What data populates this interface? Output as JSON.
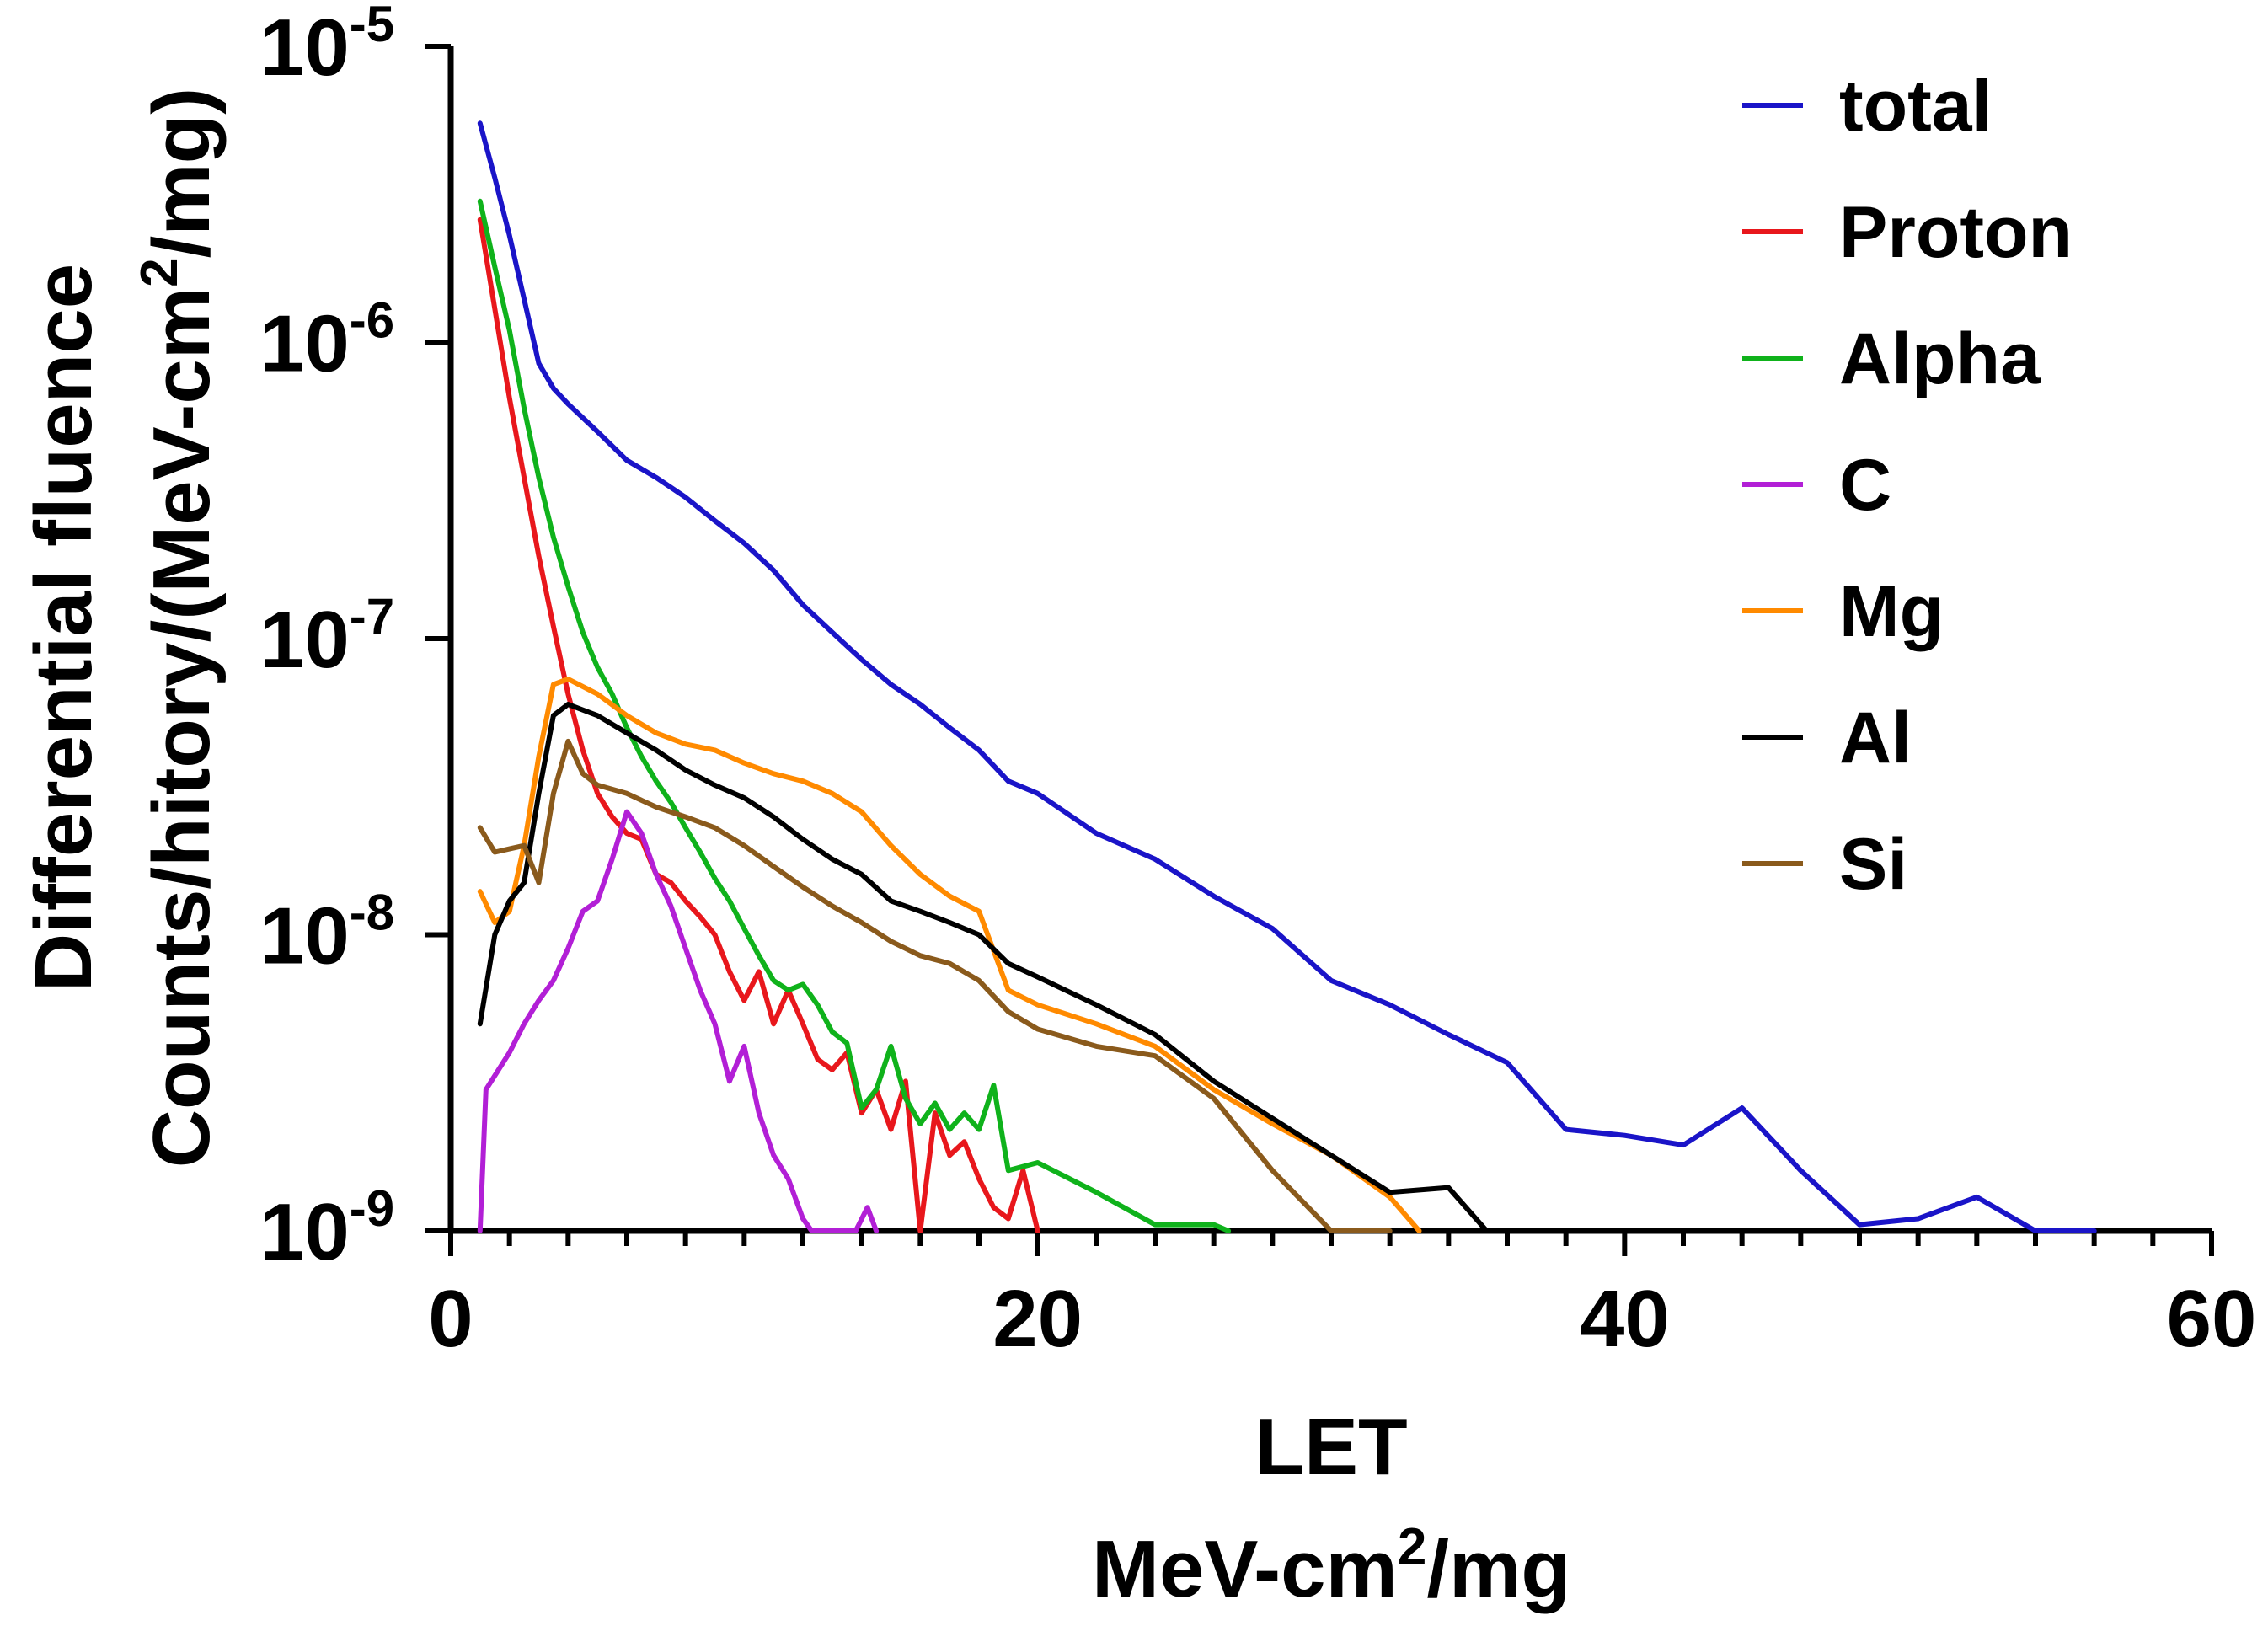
{
  "chart_data": {
    "type": "line",
    "title": "",
    "xlabel": "LET",
    "xlabel_unit": {
      "base": "MeV-cm",
      "sup": "2",
      "tail": "/mg"
    },
    "ylabel_line1": "Differential fluence",
    "ylabel_line2": {
      "base": "Counts/hitory/(MeV-cm",
      "sup": "2",
      "tail": "/mg)"
    },
    "xlim": [
      0,
      60
    ],
    "ylim": [
      1e-09,
      1e-05
    ],
    "yscale": "log",
    "x_ticks": [
      {
        "value": 0,
        "label": "0"
      },
      {
        "value": 20,
        "label": "20"
      },
      {
        "value": 40,
        "label": "40"
      },
      {
        "value": 60,
        "label": "60"
      }
    ],
    "y_ticks": [
      {
        "value": -5,
        "base": "10",
        "exp": "-5"
      },
      {
        "value": -6,
        "base": "10",
        "exp": "-6"
      },
      {
        "value": -7,
        "base": "10",
        "exp": "-7"
      },
      {
        "value": -8,
        "base": "10",
        "exp": "-8"
      },
      {
        "value": -9,
        "base": "10",
        "exp": "-9"
      }
    ],
    "legend_position": "top-right",
    "series": [
      {
        "name": "total",
        "color": "#1a14c8",
        "points": [
          [
            1,
            5.5e-06
          ],
          [
            1.5,
            3.6e-06
          ],
          [
            2,
            2.3e-06
          ],
          [
            2.5,
            1.4e-06
          ],
          [
            3,
            8.5e-07
          ],
          [
            3.5,
            7e-07
          ],
          [
            4,
            6.2e-07
          ],
          [
            5,
            5e-07
          ],
          [
            6,
            4e-07
          ],
          [
            7,
            3.5e-07
          ],
          [
            8,
            3e-07
          ],
          [
            9,
            2.5e-07
          ],
          [
            10,
            2.1e-07
          ],
          [
            11,
            1.7e-07
          ],
          [
            12,
            1.3e-07
          ],
          [
            13,
            1.05e-07
          ],
          [
            14,
            8.5e-08
          ],
          [
            15,
            7e-08
          ],
          [
            16,
            6e-08
          ],
          [
            17,
            5e-08
          ],
          [
            18,
            4.2e-08
          ],
          [
            19,
            3.3e-08
          ],
          [
            20,
            3e-08
          ],
          [
            22,
            2.2e-08
          ],
          [
            24,
            1.8e-08
          ],
          [
            26,
            1.35e-08
          ],
          [
            28,
            1.05e-08
          ],
          [
            30,
            7e-09
          ],
          [
            32,
            5.8e-09
          ],
          [
            34,
            4.6e-09
          ],
          [
            36,
            3.7e-09
          ],
          [
            38,
            2.2e-09
          ],
          [
            40,
            2.1e-09
          ],
          [
            42,
            1.95e-09
          ],
          [
            44,
            2.6e-09
          ],
          [
            46,
            1.6e-09
          ],
          [
            48,
            1.05e-09
          ],
          [
            50,
            1.1e-09
          ],
          [
            52,
            1.3e-09
          ],
          [
            54,
            1e-09
          ],
          [
            56,
            1e-09
          ]
        ]
      },
      {
        "name": "Proton",
        "color": "#e8171c",
        "points": [
          [
            1,
            2.6e-06
          ],
          [
            1.5,
            1.3e-06
          ],
          [
            2,
            6.5e-07
          ],
          [
            2.5,
            3.5e-07
          ],
          [
            3,
            1.9e-07
          ],
          [
            3.5,
            1.1e-07
          ],
          [
            4,
            6.5e-08
          ],
          [
            4.5,
            4.2e-08
          ],
          [
            5,
            3e-08
          ],
          [
            5.5,
            2.5e-08
          ],
          [
            6,
            2.2e-08
          ],
          [
            6.5,
            2.1e-08
          ],
          [
            7,
            1.6e-08
          ],
          [
            7.5,
            1.5e-08
          ],
          [
            8,
            1.3e-08
          ],
          [
            8.5,
            1.15e-08
          ],
          [
            9,
            1e-08
          ],
          [
            9.5,
            7.5e-09
          ],
          [
            10,
            6e-09
          ],
          [
            10.5,
            7.5e-09
          ],
          [
            11,
            5e-09
          ],
          [
            11.5,
            6.5e-09
          ],
          [
            12,
            5e-09
          ],
          [
            12.5,
            3.8e-09
          ],
          [
            13,
            3.5e-09
          ],
          [
            13.5,
            4e-09
          ],
          [
            14,
            2.5e-09
          ],
          [
            14.5,
            3e-09
          ],
          [
            15,
            2.2e-09
          ],
          [
            15.5,
            3.2e-09
          ],
          [
            16,
            1e-09
          ],
          [
            16.5,
            2.5e-09
          ],
          [
            17,
            1.8e-09
          ],
          [
            17.5,
            2e-09
          ],
          [
            18,
            1.5e-09
          ],
          [
            18.5,
            1.2e-09
          ],
          [
            19,
            1.1e-09
          ],
          [
            19.5,
            1.6e-09
          ],
          [
            20,
            1e-09
          ]
        ]
      },
      {
        "name": "Alpha",
        "color": "#0fb21b",
        "points": [
          [
            1,
            3e-06
          ],
          [
            1.5,
            1.8e-06
          ],
          [
            2,
            1.1e-06
          ],
          [
            2.5,
            6e-07
          ],
          [
            3,
            3.5e-07
          ],
          [
            3.5,
            2.2e-07
          ],
          [
            4,
            1.5e-07
          ],
          [
            4.5,
            1.05e-07
          ],
          [
            5,
            8e-08
          ],
          [
            5.5,
            6.5e-08
          ],
          [
            6,
            5e-08
          ],
          [
            6.5,
            4e-08
          ],
          [
            7,
            3.3e-08
          ],
          [
            7.5,
            2.8e-08
          ],
          [
            8,
            2.3e-08
          ],
          [
            8.5,
            1.9e-08
          ],
          [
            9,
            1.55e-08
          ],
          [
            9.5,
            1.3e-08
          ],
          [
            10,
            1.05e-08
          ],
          [
            10.5,
            8.5e-09
          ],
          [
            11,
            7e-09
          ],
          [
            11.5,
            6.5e-09
          ],
          [
            12,
            6.8e-09
          ],
          [
            12.5,
            5.8e-09
          ],
          [
            13,
            4.7e-09
          ],
          [
            13.5,
            4.3e-09
          ],
          [
            14,
            2.6e-09
          ],
          [
            14.5,
            3e-09
          ],
          [
            15,
            4.2e-09
          ],
          [
            15.5,
            2.8e-09
          ],
          [
            16,
            2.3e-09
          ],
          [
            16.5,
            2.7e-09
          ],
          [
            17,
            2.2e-09
          ],
          [
            17.5,
            2.5e-09
          ],
          [
            18,
            2.2e-09
          ],
          [
            18.5,
            3.1e-09
          ],
          [
            19,
            1.6e-09
          ],
          [
            20,
            1.7e-09
          ],
          [
            22,
            1.35e-09
          ],
          [
            24,
            1.05e-09
          ],
          [
            26,
            1.05e-09
          ],
          [
            26.5,
            1e-09
          ]
        ]
      },
      {
        "name": "C",
        "color": "#b21fd6",
        "points": [
          [
            1,
            1e-09
          ],
          [
            1.2,
            3e-09
          ],
          [
            2,
            4e-09
          ],
          [
            2.5,
            5e-09
          ],
          [
            3,
            6e-09
          ],
          [
            3.5,
            7e-09
          ],
          [
            4,
            9e-09
          ],
          [
            4.5,
            1.2e-08
          ],
          [
            5,
            1.3e-08
          ],
          [
            5.5,
            1.8e-08
          ],
          [
            6,
            2.6e-08
          ],
          [
            6.5,
            2.2e-08
          ],
          [
            7,
            1.6e-08
          ],
          [
            7.5,
            1.25e-08
          ],
          [
            8,
            9e-09
          ],
          [
            8.5,
            6.5e-09
          ],
          [
            9,
            5e-09
          ],
          [
            9.5,
            3.2e-09
          ],
          [
            10,
            4.2e-09
          ],
          [
            10.5,
            2.5e-09
          ],
          [
            11,
            1.8e-09
          ],
          [
            11.5,
            1.5e-09
          ],
          [
            12,
            1.1e-09
          ],
          [
            12.3,
            1e-09
          ],
          [
            13.8,
            1e-09
          ],
          [
            14.2,
            1.2e-09
          ],
          [
            14.5,
            1e-09
          ]
        ]
      },
      {
        "name": "Mg",
        "color": "#ff8a00",
        "points": [
          [
            1,
            1.4e-08
          ],
          [
            1.5,
            1.1e-08
          ],
          [
            2,
            1.2e-08
          ],
          [
            2.5,
            2e-08
          ],
          [
            3,
            4e-08
          ],
          [
            3.5,
            7e-08
          ],
          [
            4,
            7.3e-08
          ],
          [
            5,
            6.5e-08
          ],
          [
            6,
            5.5e-08
          ],
          [
            7,
            4.8e-08
          ],
          [
            8,
            4.4e-08
          ],
          [
            9,
            4.2e-08
          ],
          [
            10,
            3.8e-08
          ],
          [
            11,
            3.5e-08
          ],
          [
            12,
            3.3e-08
          ],
          [
            13,
            3e-08
          ],
          [
            14,
            2.6e-08
          ],
          [
            15,
            2e-08
          ],
          [
            16,
            1.6e-08
          ],
          [
            17,
            1.35e-08
          ],
          [
            18,
            1.2e-08
          ],
          [
            19,
            6.5e-09
          ],
          [
            20,
            5.8e-09
          ],
          [
            22,
            5e-09
          ],
          [
            24,
            4.2e-09
          ],
          [
            26,
            3e-09
          ],
          [
            28,
            2.3e-09
          ],
          [
            30,
            1.8e-09
          ],
          [
            32,
            1.3e-09
          ],
          [
            33,
            1e-09
          ]
        ]
      },
      {
        "name": "Al",
        "color": "#000000",
        "points": [
          [
            1,
            5e-09
          ],
          [
            1.5,
            1e-08
          ],
          [
            2,
            1.3e-08
          ],
          [
            2.5,
            1.5e-08
          ],
          [
            3,
            3e-08
          ],
          [
            3.5,
            5.5e-08
          ],
          [
            4,
            6e-08
          ],
          [
            5,
            5.5e-08
          ],
          [
            6,
            4.8e-08
          ],
          [
            7,
            4.2e-08
          ],
          [
            8,
            3.6e-08
          ],
          [
            9,
            3.2e-08
          ],
          [
            10,
            2.9e-08
          ],
          [
            11,
            2.5e-08
          ],
          [
            12,
            2.1e-08
          ],
          [
            13,
            1.8e-08
          ],
          [
            14,
            1.6e-08
          ],
          [
            15,
            1.3e-08
          ],
          [
            16,
            1.2e-08
          ],
          [
            17,
            1.1e-08
          ],
          [
            18,
            1e-08
          ],
          [
            19,
            8e-09
          ],
          [
            20,
            7.2e-09
          ],
          [
            22,
            5.8e-09
          ],
          [
            24,
            4.6e-09
          ],
          [
            26,
            3.2e-09
          ],
          [
            28,
            2.4e-09
          ],
          [
            30,
            1.8e-09
          ],
          [
            32,
            1.35e-09
          ],
          [
            34,
            1.4e-09
          ],
          [
            35.3,
            1e-09
          ]
        ]
      },
      {
        "name": "Si",
        "color": "#8a5a1c",
        "points": [
          [
            1,
            2.3e-08
          ],
          [
            1.5,
            1.9e-08
          ],
          [
            2,
            1.95e-08
          ],
          [
            2.5,
            2e-08
          ],
          [
            3,
            1.5e-08
          ],
          [
            3.5,
            3e-08
          ],
          [
            4,
            4.5e-08
          ],
          [
            4.5,
            3.5e-08
          ],
          [
            5,
            3.2e-08
          ],
          [
            6,
            3e-08
          ],
          [
            7,
            2.7e-08
          ],
          [
            8,
            2.5e-08
          ],
          [
            9,
            2.3e-08
          ],
          [
            10,
            2e-08
          ],
          [
            11,
            1.7e-08
          ],
          [
            12,
            1.45e-08
          ],
          [
            13,
            1.25e-08
          ],
          [
            14,
            1.1e-08
          ],
          [
            15,
            9.5e-09
          ],
          [
            16,
            8.5e-09
          ],
          [
            17,
            8e-09
          ],
          [
            18,
            7e-09
          ],
          [
            19,
            5.5e-09
          ],
          [
            20,
            4.8e-09
          ],
          [
            22,
            4.2e-09
          ],
          [
            24,
            3.9e-09
          ],
          [
            26,
            2.8e-09
          ],
          [
            28,
            1.6e-09
          ],
          [
            30,
            1e-09
          ],
          [
            31,
            1e-09
          ],
          [
            32,
            1e-09
          ]
        ]
      }
    ]
  }
}
